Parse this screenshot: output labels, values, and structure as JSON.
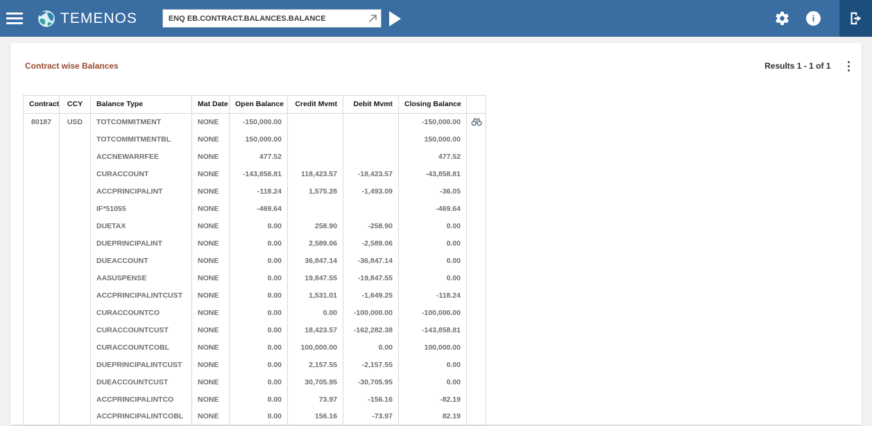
{
  "colors": {
    "topbar_blue": "#3a6da1",
    "topbar_dark_blue": "#1d4d7c",
    "title_brown": "#9b4a2f",
    "table_text_gray": "#6e6e6e",
    "border_gray": "#d8d8d8"
  },
  "icons": {
    "menu": "hamburger-icon",
    "brand": "globe-icon",
    "command_go": "launch-arrow-icon",
    "run": "play-icon",
    "settings": "gear-icon",
    "info": "info-icon",
    "logout": "logout-icon",
    "overflow": "kebab-menu-icon",
    "row_action": "binoculars-icon"
  },
  "topbar": {
    "brand": "TEMENOS",
    "command_value": "ENQ EB.CONTRACT.BALANCES.BALANCE",
    "info_glyph": "i"
  },
  "panel": {
    "title": "Contract wise Balances",
    "results": "Results 1 - 1 of 1"
  },
  "table": {
    "headers": [
      "Contract",
      "CCY",
      "Balance Type",
      "Mat Date",
      "Open Balance",
      "Credit Mvmt",
      "Debit Mvmt",
      "Closing Balance"
    ],
    "rows": [
      {
        "contract": "80187",
        "ccy": "USD",
        "balance_type": "TOTCOMMITMENT",
        "mat_date": "NONE",
        "open_balance": "-150,000.00",
        "credit_mvmt": "",
        "debit_mvmt": "",
        "closing_balance": "-150,000.00",
        "has_action": true
      },
      {
        "contract": "",
        "ccy": "",
        "balance_type": "TOTCOMMITMENTBL",
        "mat_date": "NONE",
        "open_balance": "150,000.00",
        "credit_mvmt": "",
        "debit_mvmt": "",
        "closing_balance": "150,000.00",
        "has_action": false
      },
      {
        "contract": "",
        "ccy": "",
        "balance_type": "ACCNEWARRFEE",
        "mat_date": "NONE",
        "open_balance": "477.52",
        "credit_mvmt": "",
        "debit_mvmt": "",
        "closing_balance": "477.52",
        "has_action": false
      },
      {
        "contract": "",
        "ccy": "",
        "balance_type": "CURACCOUNT",
        "mat_date": "NONE",
        "open_balance": "-143,858.81",
        "credit_mvmt": "118,423.57",
        "debit_mvmt": "-18,423.57",
        "closing_balance": "-43,858.81",
        "has_action": false
      },
      {
        "contract": "",
        "ccy": "",
        "balance_type": "ACCPRINCIPALINT",
        "mat_date": "NONE",
        "open_balance": "-118.24",
        "credit_mvmt": "1,575.28",
        "debit_mvmt": "-1,493.09",
        "closing_balance": "-36.05",
        "has_action": false
      },
      {
        "contract": "",
        "ccy": "",
        "balance_type": "IF*51055",
        "mat_date": "NONE",
        "open_balance": "-469.64",
        "credit_mvmt": "",
        "debit_mvmt": "",
        "closing_balance": "-469.64",
        "has_action": false
      },
      {
        "contract": "",
        "ccy": "",
        "balance_type": "DUETAX",
        "mat_date": "NONE",
        "open_balance": "0.00",
        "credit_mvmt": "258.90",
        "debit_mvmt": "-258.90",
        "closing_balance": "0.00",
        "has_action": false
      },
      {
        "contract": "",
        "ccy": "",
        "balance_type": "DUEPRINCIPALINT",
        "mat_date": "NONE",
        "open_balance": "0.00",
        "credit_mvmt": "2,589.06",
        "debit_mvmt": "-2,589.06",
        "closing_balance": "0.00",
        "has_action": false
      },
      {
        "contract": "",
        "ccy": "",
        "balance_type": "DUEACCOUNT",
        "mat_date": "NONE",
        "open_balance": "0.00",
        "credit_mvmt": "36,847.14",
        "debit_mvmt": "-36,847.14",
        "closing_balance": "0.00",
        "has_action": false
      },
      {
        "contract": "",
        "ccy": "",
        "balance_type": "AASUSPENSE",
        "mat_date": "NONE",
        "open_balance": "0.00",
        "credit_mvmt": "19,847.55",
        "debit_mvmt": "-19,847.55",
        "closing_balance": "0.00",
        "has_action": false
      },
      {
        "contract": "",
        "ccy": "",
        "balance_type": "ACCPRINCIPALINTCUST",
        "mat_date": "NONE",
        "open_balance": "0.00",
        "credit_mvmt": "1,531.01",
        "debit_mvmt": "-1,649.25",
        "closing_balance": "-118.24",
        "has_action": false
      },
      {
        "contract": "",
        "ccy": "",
        "balance_type": "CURACCOUNTCO",
        "mat_date": "NONE",
        "open_balance": "0.00",
        "credit_mvmt": "0.00",
        "debit_mvmt": "-100,000.00",
        "closing_balance": "-100,000.00",
        "has_action": false
      },
      {
        "contract": "",
        "ccy": "",
        "balance_type": "CURACCOUNTCUST",
        "mat_date": "NONE",
        "open_balance": "0.00",
        "credit_mvmt": "18,423.57",
        "debit_mvmt": "-162,282.38",
        "closing_balance": "-143,858.81",
        "has_action": false
      },
      {
        "contract": "",
        "ccy": "",
        "balance_type": "CURACCOUNTCOBL",
        "mat_date": "NONE",
        "open_balance": "0.00",
        "credit_mvmt": "100,000.00",
        "debit_mvmt": "0.00",
        "closing_balance": "100,000.00",
        "has_action": false
      },
      {
        "contract": "",
        "ccy": "",
        "balance_type": "DUEPRINCIPALINTCUST",
        "mat_date": "NONE",
        "open_balance": "0.00",
        "credit_mvmt": "2,157.55",
        "debit_mvmt": "-2,157.55",
        "closing_balance": "0.00",
        "has_action": false
      },
      {
        "contract": "",
        "ccy": "",
        "balance_type": "DUEACCOUNTCUST",
        "mat_date": "NONE",
        "open_balance": "0.00",
        "credit_mvmt": "30,705.95",
        "debit_mvmt": "-30,705.95",
        "closing_balance": "0.00",
        "has_action": false
      },
      {
        "contract": "",
        "ccy": "",
        "balance_type": "ACCPRINCIPALINTCO",
        "mat_date": "NONE",
        "open_balance": "0.00",
        "credit_mvmt": "73.97",
        "debit_mvmt": "-156.16",
        "closing_balance": "-82.19",
        "has_action": false
      },
      {
        "contract": "",
        "ccy": "",
        "balance_type": "ACCPRINCIPALINTCOBL",
        "mat_date": "NONE",
        "open_balance": "0.00",
        "credit_mvmt": "156.16",
        "debit_mvmt": "-73.97",
        "closing_balance": "82.19",
        "has_action": false
      }
    ]
  }
}
